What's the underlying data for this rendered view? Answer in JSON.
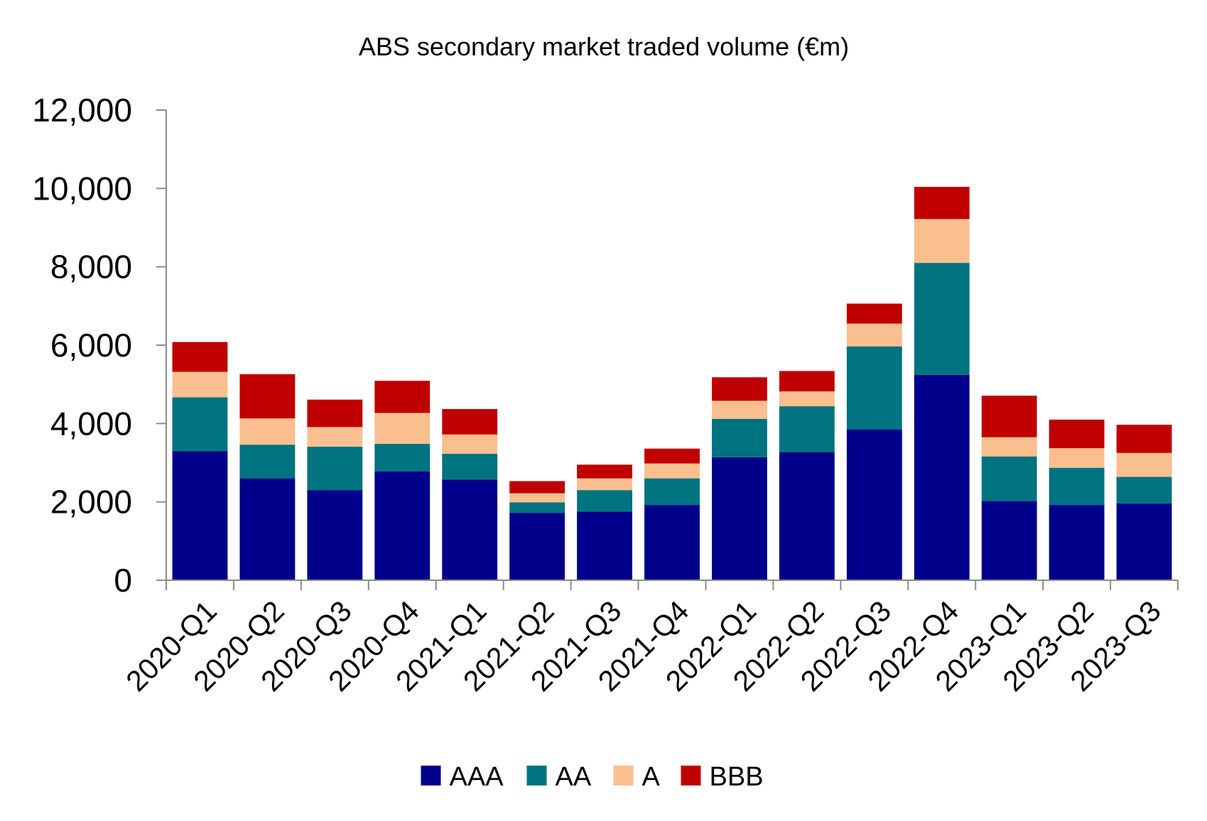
{
  "chart_data": {
    "type": "bar",
    "stacked": true,
    "title": "ABS secondary market traded volume (€m)",
    "xlabel": "",
    "ylabel": "",
    "ylim": [
      0,
      12000
    ],
    "yticks": [
      0,
      2000,
      4000,
      6000,
      8000,
      10000,
      12000
    ],
    "ytick_labels": [
      "0",
      "2,000",
      "4,000",
      "6,000",
      "8,000",
      "10,000",
      "12,000"
    ],
    "grid": false,
    "legend_position": "bottom",
    "categories": [
      "2020-Q1",
      "2020-Q2",
      "2020-Q3",
      "2020-Q4",
      "2021-Q1",
      "2021-Q2",
      "2021-Q3",
      "2021-Q4",
      "2022-Q1",
      "2022-Q2",
      "2022-Q3",
      "2022-Q4",
      "2023-Q1",
      "2023-Q2",
      "2023-Q3"
    ],
    "series": [
      {
        "name": "AAA",
        "color": "#00008B",
        "values": [
          3290,
          2600,
          2300,
          2780,
          2570,
          1720,
          1750,
          1920,
          3140,
          3270,
          3850,
          5240,
          2020,
          1920,
          1960
        ]
      },
      {
        "name": "AA",
        "color": "#007380",
        "values": [
          1380,
          860,
          1110,
          700,
          660,
          270,
          550,
          680,
          980,
          1170,
          2120,
          2860,
          1140,
          950,
          680
        ]
      },
      {
        "name": "A",
        "color": "#FABF8F",
        "values": [
          650,
          670,
          500,
          790,
          490,
          230,
          300,
          380,
          460,
          380,
          580,
          1120,
          490,
          500,
          610
        ]
      },
      {
        "name": "BBB",
        "color": "#C00000",
        "values": [
          760,
          1130,
          700,
          820,
          650,
          310,
          350,
          380,
          600,
          520,
          510,
          820,
          1060,
          730,
          720
        ]
      }
    ]
  }
}
